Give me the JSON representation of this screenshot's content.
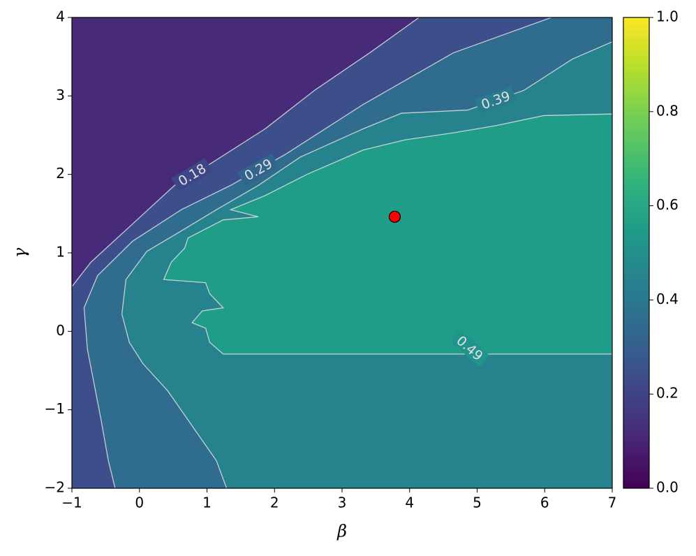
{
  "chart_data": {
    "type": "contour",
    "xlabel": "β",
    "ylabel": "γ",
    "xlim": [
      -1,
      7
    ],
    "ylim": [
      -2,
      4
    ],
    "xticks": [
      {
        "value": -1,
        "label": "−1"
      },
      0,
      1,
      2,
      3,
      4,
      5,
      6,
      7
    ],
    "yticks": [
      {
        "value": -2,
        "label": "−2"
      },
      {
        "value": -1,
        "label": "−1"
      },
      0,
      1,
      2,
      3,
      4
    ],
    "colorbar": {
      "clim": [
        0,
        1
      ],
      "ticks": [
        {
          "value": 0,
          "label": "0.0"
        },
        {
          "value": 0.2,
          "label": "0.2"
        },
        {
          "value": 0.4,
          "label": "0.4"
        },
        {
          "value": 0.6,
          "label": "0.6"
        },
        {
          "value": 0.8,
          "label": "0.8"
        },
        {
          "value": 1,
          "label": "1.0"
        }
      ]
    },
    "line_color": "#e0e0e0",
    "contours": [
      {
        "level": 0.18,
        "x": [
          -1.0,
          -0.72,
          -0.1,
          0.52,
          1.04,
          1.86,
          2.59,
          3.41,
          4.14
        ],
        "y": [
          0.57,
          0.88,
          1.37,
          1.86,
          2.13,
          2.58,
          3.07,
          3.55,
          4.0
        ]
      },
      {
        "level": 0.29,
        "x": [
          -0.36,
          -0.46,
          -0.57,
          -0.77,
          -0.82,
          -0.62,
          -0.1,
          0.62,
          1.35,
          2.17,
          3.31,
          4.65,
          6.1
        ],
        "y": [
          -2,
          -1.65,
          -1.12,
          -0.23,
          0.3,
          0.71,
          1.15,
          1.55,
          1.86,
          2.26,
          2.89,
          3.55,
          4.0
        ]
      },
      {
        "level": 0.39,
        "x": [
          1.29,
          1.14,
          0.93,
          0.42,
          0.05,
          -0.15,
          -0.26,
          -0.2,
          0.11,
          0.62,
          1.14,
          1.76,
          2.38,
          3.31,
          3.88,
          4.86,
          5.69,
          6.41,
          7.0
        ],
        "y": [
          -2,
          -1.65,
          -1.39,
          -0.76,
          -0.41,
          -0.14,
          0.22,
          0.66,
          1.02,
          1.28,
          1.55,
          1.86,
          2.22,
          2.58,
          2.78,
          2.82,
          3.07,
          3.47,
          3.69
        ]
      },
      {
        "level": 0.49,
        "x": [
          7,
          1.24,
          1.04,
          0.98,
          0.78,
          0.93,
          1.24,
          1.04,
          0.98,
          0.36,
          0.47,
          0.67,
          0.72,
          1.24,
          1.76,
          1.35,
          1.86,
          2.48,
          3.31,
          3.93,
          4.65,
          5.27,
          5.99,
          7
        ],
        "y": [
          -0.29,
          -0.29,
          -0.14,
          0.04,
          0.11,
          0.26,
          0.3,
          0.48,
          0.62,
          0.66,
          0.88,
          1.06,
          1.19,
          1.42,
          1.46,
          1.55,
          1.73,
          2.0,
          2.31,
          2.44,
          2.53,
          2.62,
          2.75,
          2.77
        ]
      }
    ],
    "point": {
      "x": 3.78,
      "y": 1.46,
      "color": "#ff0000"
    }
  }
}
